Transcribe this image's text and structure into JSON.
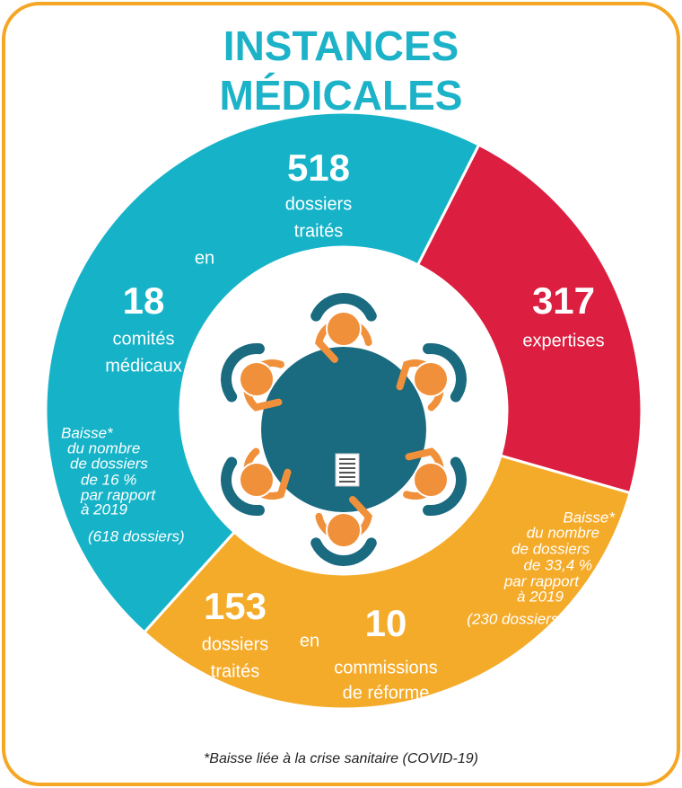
{
  "title": {
    "line1": "INSTANCES",
    "line2": "MÉDICALES"
  },
  "comites": {
    "dossiers": 518,
    "dossiers_label": [
      "dossiers",
      "traités"
    ],
    "en": "en",
    "count": 18,
    "count_label": [
      "comités",
      "médicaux"
    ],
    "note": [
      "Baisse*",
      "du nombre",
      "de dossiers",
      "de 16 %",
      "par rapport",
      "à 2019",
      "(618 dossiers)"
    ]
  },
  "expertises": {
    "count": 317,
    "label": "expertises"
  },
  "commissions": {
    "dossiers": 153,
    "dossiers_label": [
      "dossiers",
      "traités"
    ],
    "en": "en",
    "count": 10,
    "count_label": [
      "commissions",
      "de réforme"
    ],
    "note": [
      "Baisse*",
      "du nombre",
      "de dossiers",
      "de 33,4 %",
      "par rapport",
      "à 2019",
      "(230 dossiers)"
    ]
  },
  "footnote": "*Baisse liée à la crise sanitaire (COVID-19)"
}
